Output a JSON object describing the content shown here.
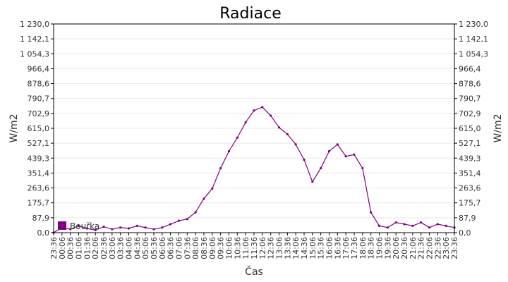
{
  "chart_data": {
    "type": "line",
    "title": "Radiace",
    "xlabel": "Čas",
    "ylabel": "W/m2",
    "ylabel_right": "W/m2",
    "ylim": [
      0,
      1230
    ],
    "y_ticks": [
      "0,0",
      "87,9",
      "175,7",
      "263,6",
      "351,4",
      "439,3",
      "527,1",
      "615,0",
      "702,9",
      "790,7",
      "878,6",
      "966,4",
      "1 054,3",
      "1 142,1",
      "1 230,0"
    ],
    "x_ticks": [
      "23:36",
      "00:06",
      "00:36",
      "01:06",
      "01:36",
      "02:06",
      "02:36",
      "03:06",
      "03:36",
      "04:06",
      "04:36",
      "05:06",
      "05:36",
      "06:06",
      "06:36",
      "07:06",
      "07:36",
      "08:06",
      "08:36",
      "09:06",
      "09:36",
      "10:06",
      "10:36",
      "11:06",
      "11:36",
      "12:06",
      "12:36",
      "13:06",
      "13:36",
      "14:06",
      "14:36",
      "15:06",
      "15:36",
      "16:06",
      "16:36",
      "17:06",
      "17:36",
      "18:06",
      "18:36",
      "19:06",
      "19:36",
      "20:06",
      "20:36",
      "21:06",
      "21:36",
      "22:06",
      "22:36",
      "23:06",
      "23:36"
    ],
    "grid": true,
    "legend_position": "bottom-left",
    "colors": {
      "series": "#800080",
      "grid": "#e8e8e8"
    },
    "series": [
      {
        "name": "Bouřka",
        "x": [
          "23:36",
          "00:06",
          "00:36",
          "01:06",
          "01:36",
          "02:06",
          "02:36",
          "03:06",
          "03:36",
          "04:06",
          "04:36",
          "05:06",
          "05:36",
          "06:06",
          "06:36",
          "07:06",
          "07:36",
          "08:06",
          "08:36",
          "09:06",
          "09:36",
          "10:06",
          "10:36",
          "11:06",
          "11:36",
          "12:06",
          "12:36",
          "13:06",
          "13:36",
          "14:06",
          "14:36",
          "15:06",
          "15:36",
          "16:06",
          "16:36",
          "17:06",
          "17:36",
          "18:06",
          "18:36",
          "19:06",
          "19:36",
          "20:06",
          "20:36",
          "21:06",
          "21:36",
          "22:06",
          "22:36",
          "23:06",
          "23:36"
        ],
        "values": [
          0,
          30,
          20,
          40,
          25,
          15,
          35,
          20,
          30,
          25,
          40,
          30,
          20,
          30,
          50,
          70,
          80,
          120,
          200,
          260,
          380,
          480,
          560,
          650,
          720,
          740,
          690,
          620,
          580,
          520,
          430,
          300,
          380,
          480,
          520,
          450,
          460,
          380,
          120,
          40,
          30,
          60,
          50,
          40,
          60,
          30,
          50,
          40,
          30
        ]
      }
    ]
  }
}
